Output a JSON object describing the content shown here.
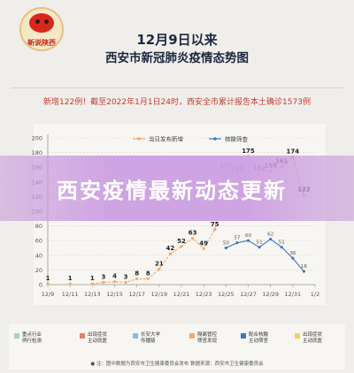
{
  "logo": {
    "text": "新说陕西"
  },
  "title": {
    "line1": "12月9日以来",
    "line2": "西安市新冠肺炎疫情态势图"
  },
  "note": "新增122例！截至2022年1月1日24时，西安全市累计报告本土确诊1573例",
  "banner": {
    "text": "西安疫情最新动态更新"
  },
  "legend": {
    "items": [
      {
        "label": "重点行业\n例行检测",
        "color": "#a8d5b5"
      },
      {
        "label": "出现症状\n主动就医",
        "color": "#e08072"
      },
      {
        "label": "长安大学\n传播链",
        "color": "#7fc1e6"
      },
      {
        "label": "隔离管控\n筛查发现",
        "color": "#f3a96a"
      },
      {
        "label": "配合核酸\n主动筛查",
        "color": "#3d78c4"
      },
      {
        "label": "出现症状\n主动就医",
        "color": "#f2d25e"
      }
    ]
  },
  "footer": "● 注：图中数据为西安市卫生健康委员会发布 数据来源：西安市卫生健康委员会",
  "chart_data": {
    "type": "line",
    "title": "",
    "xlabel": "",
    "ylabel": "",
    "ylim": [
      0,
      200
    ],
    "yticks": [
      0,
      20,
      40,
      60,
      80,
      100,
      120,
      140,
      160,
      180,
      200
    ],
    "xtick_labels": [
      "12/9",
      "12/11",
      "12/13",
      "12/15",
      "12/17",
      "12/19",
      "12/21",
      "12/23",
      "12/25",
      "12/27",
      "12/29",
      "12/31",
      "1/2"
    ],
    "x": [
      "12/9",
      "12/10",
      "12/11",
      "12/12",
      "12/13",
      "12/14",
      "12/15",
      "12/16",
      "12/17",
      "12/18",
      "12/19",
      "12/20",
      "12/21",
      "12/22",
      "12/23",
      "12/24",
      "12/25",
      "12/26",
      "12/27",
      "12/28",
      "12/29",
      "12/30",
      "12/31",
      "1/1",
      "1/2"
    ],
    "grid": true,
    "legend_position": "top",
    "series": [
      {
        "name": "当日发布新增",
        "color": "#f3a96a",
        "values": [
          1,
          null,
          1,
          null,
          1,
          3,
          4,
          3,
          8,
          8,
          21,
          42,
          52,
          63,
          49,
          75,
          155,
          150,
          175,
          151,
          155,
          161,
          174,
          122,
          null
        ],
        "labels": [
          1,
          null,
          1,
          null,
          1,
          3,
          4,
          3,
          8,
          8,
          21,
          42,
          52,
          63,
          49,
          75,
          155,
          150,
          175,
          151,
          155,
          161,
          174,
          122,
          null
        ]
      },
      {
        "name": "核酸筛查",
        "color": "#3d78c4",
        "values": [
          null,
          null,
          null,
          null,
          null,
          null,
          null,
          null,
          null,
          null,
          null,
          null,
          null,
          null,
          null,
          null,
          50,
          57,
          60,
          51,
          62,
          51,
          36,
          18,
          null
        ],
        "labels": [
          null,
          null,
          null,
          null,
          null,
          null,
          null,
          null,
          null,
          null,
          null,
          null,
          null,
          null,
          null,
          null,
          50,
          57,
          60,
          51,
          62,
          51,
          36,
          18,
          null
        ]
      }
    ]
  }
}
